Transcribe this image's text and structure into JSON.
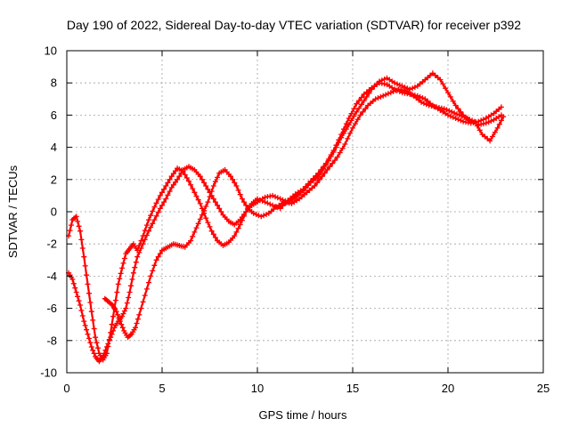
{
  "chart_data": {
    "type": "scatter",
    "title": "Day 190 of 2022, Sidereal Day-to-day VTEC variation (SDTVAR) for receiver p392",
    "xlabel": "GPS time / hours",
    "ylabel": "SDTVAR / TECUs",
    "xlim": [
      0,
      25
    ],
    "ylim": [
      -10,
      10
    ],
    "xticks": [
      "0",
      "5",
      "10",
      "15",
      "20",
      "25"
    ],
    "yticks": [
      "-10",
      "-8",
      "-6",
      "-4",
      "-2",
      "0",
      "2",
      "4",
      "6",
      "8",
      "10"
    ],
    "grid": true,
    "marker": "+",
    "color": "#ff0000",
    "series": [
      {
        "x": [
          0.1,
          0.3,
          0.5,
          0.7,
          0.9,
          1.1,
          1.3,
          1.5,
          1.7,
          1.9,
          2.1,
          2.3,
          2.5,
          2.7,
          2.9,
          3.1,
          3.3,
          3.5,
          3.7,
          4.0,
          4.3,
          4.6,
          4.9,
          5.2,
          5.5,
          5.8,
          6.1,
          6.4,
          6.7,
          7.0,
          7.3,
          7.6,
          7.9,
          8.2,
          8.5,
          8.8,
          9.1,
          9.4,
          9.7,
          10.0,
          10.4,
          10.8,
          11.2,
          11.6,
          12.0,
          12.4,
          12.8,
          13.2,
          13.6,
          14.0,
          14.4,
          14.8,
          15.2,
          15.6,
          16.0,
          16.4,
          16.8,
          17.2,
          17.6,
          18.0,
          18.4,
          18.8,
          19.2,
          19.6,
          20.0,
          20.4,
          20.8,
          21.2,
          21.6,
          22.0,
          22.4,
          22.8
        ],
        "y": [
          -1.5,
          -0.5,
          -0.3,
          -1.2,
          -2.8,
          -4.5,
          -6.2,
          -7.8,
          -8.8,
          -9.2,
          -8.8,
          -7.5,
          -6.0,
          -4.5,
          -3.5,
          -2.6,
          -2.3,
          -2.0,
          -2.4,
          -1.5,
          -0.5,
          0.3,
          1.0,
          1.6,
          2.2,
          2.7,
          2.5,
          1.9,
          1.2,
          0.5,
          -0.4,
          -1.2,
          -1.8,
          -2.1,
          -1.9,
          -1.5,
          -0.8,
          0.0,
          0.5,
          0.8,
          0.6,
          0.4,
          0.2,
          0.7,
          1.1,
          1.4,
          1.9,
          2.4,
          3.0,
          3.8,
          4.8,
          5.8,
          6.7,
          7.3,
          7.7,
          8.0,
          7.9,
          7.6,
          7.4,
          7.3,
          7.2,
          7.0,
          6.6,
          6.3,
          6.0,
          5.8,
          5.6,
          5.5,
          5.6,
          5.8,
          6.1,
          6.5
        ]
      },
      {
        "x": [
          0.1,
          0.3,
          0.5,
          0.7,
          0.9,
          1.1,
          1.3,
          1.5,
          1.7,
          1.9,
          2.1,
          2.3,
          2.5,
          2.7,
          2.9,
          3.1,
          3.3,
          3.5,
          3.7,
          4.0,
          4.3,
          4.6,
          4.9,
          5.2,
          5.5,
          5.8,
          6.1,
          6.4,
          6.7,
          7.0,
          7.3,
          7.6,
          7.9,
          8.2,
          8.5,
          8.8,
          9.1,
          9.4,
          9.7,
          10.0,
          10.4,
          10.8,
          11.2,
          11.6,
          12.0,
          12.4,
          12.8,
          13.2,
          13.6,
          14.0,
          14.4,
          14.8,
          15.2,
          15.6,
          16.0,
          16.4,
          16.8,
          17.2,
          17.6,
          18.0,
          18.4,
          18.8,
          19.2,
          19.6,
          20.0,
          20.4,
          20.8,
          21.2,
          21.6,
          22.0,
          22.4,
          22.8
        ],
        "y": [
          -3.8,
          -4.2,
          -5.0,
          -5.8,
          -6.8,
          -7.6,
          -8.4,
          -9.0,
          -9.3,
          -9.0,
          -8.4,
          -7.8,
          -7.2,
          -6.8,
          -6.5,
          -6.0,
          -5.0,
          -3.8,
          -2.8,
          -2.0,
          -1.2,
          -0.5,
          0.2,
          0.8,
          1.5,
          2.0,
          2.6,
          2.8,
          2.6,
          2.2,
          1.6,
          1.0,
          0.4,
          -0.2,
          -0.6,
          -0.8,
          -0.5,
          0.0,
          0.4,
          0.6,
          0.9,
          1.0,
          0.8,
          0.6,
          0.9,
          1.3,
          1.8,
          2.2,
          2.9,
          3.7,
          4.6,
          5.4,
          6.2,
          6.9,
          7.6,
          8.1,
          8.3,
          8.0,
          7.8,
          7.6,
          7.8,
          8.2,
          8.6,
          8.2,
          7.4,
          6.6,
          6.0,
          5.6,
          5.4,
          5.5,
          5.7,
          6.0
        ]
      },
      {
        "x": [
          2.0,
          2.2,
          2.4,
          2.6,
          2.8,
          3.0,
          3.2,
          3.4,
          3.6,
          3.8,
          4.1,
          4.4,
          4.7,
          5.0,
          5.3,
          5.6,
          5.9,
          6.2,
          6.5,
          6.8,
          7.1,
          7.4,
          7.7,
          8.0,
          8.3,
          8.6,
          8.9,
          9.2,
          9.5,
          9.8,
          10.2,
          10.6,
          11.0,
          11.4,
          11.8,
          12.2,
          12.6,
          13.0,
          13.4,
          13.8,
          14.2,
          14.6,
          15.0,
          15.4,
          15.8,
          16.2,
          16.6,
          17.0,
          17.4,
          17.8,
          18.2,
          18.6,
          19.0,
          19.4,
          19.8,
          20.2,
          20.6,
          21.0,
          21.4,
          21.8,
          22.2,
          22.6,
          22.9
        ],
        "y": [
          -5.4,
          -5.6,
          -5.8,
          -6.2,
          -6.8,
          -7.4,
          -7.8,
          -7.6,
          -7.2,
          -6.4,
          -5.2,
          -4.0,
          -3.0,
          -2.4,
          -2.2,
          -2.0,
          -2.1,
          -2.2,
          -1.8,
          -1.0,
          -0.2,
          0.6,
          1.6,
          2.4,
          2.6,
          2.2,
          1.6,
          0.8,
          0.2,
          -0.1,
          -0.3,
          -0.1,
          0.3,
          0.6,
          0.5,
          0.8,
          1.2,
          1.6,
          2.2,
          2.8,
          3.4,
          4.2,
          5.2,
          6.0,
          6.6,
          7.0,
          7.2,
          7.4,
          7.6,
          7.5,
          7.2,
          6.8,
          6.6,
          6.5,
          6.4,
          6.2,
          6.0,
          5.8,
          5.6,
          4.8,
          4.4,
          5.2,
          5.9
        ]
      }
    ]
  }
}
